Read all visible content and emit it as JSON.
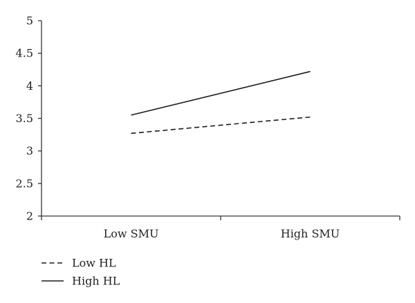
{
  "chart_data": {
    "type": "line",
    "title": "",
    "xlabel": "",
    "ylabel": "",
    "categories": [
      "Low SMU",
      "High SMU"
    ],
    "ylim": [
      2,
      5
    ],
    "yticks": [
      "2",
      "2.5",
      "3",
      "3.5",
      "4",
      "4.5",
      "5"
    ],
    "grid": false,
    "legend_position": "bottom-left",
    "series": [
      {
        "name": "Low HL",
        "values": [
          3.27,
          3.52
        ],
        "style": "dashed",
        "color": "#1a1a1a"
      },
      {
        "name": "High HL",
        "values": [
          3.55,
          4.22
        ],
        "style": "solid",
        "color": "#1a1a1a"
      }
    ]
  }
}
